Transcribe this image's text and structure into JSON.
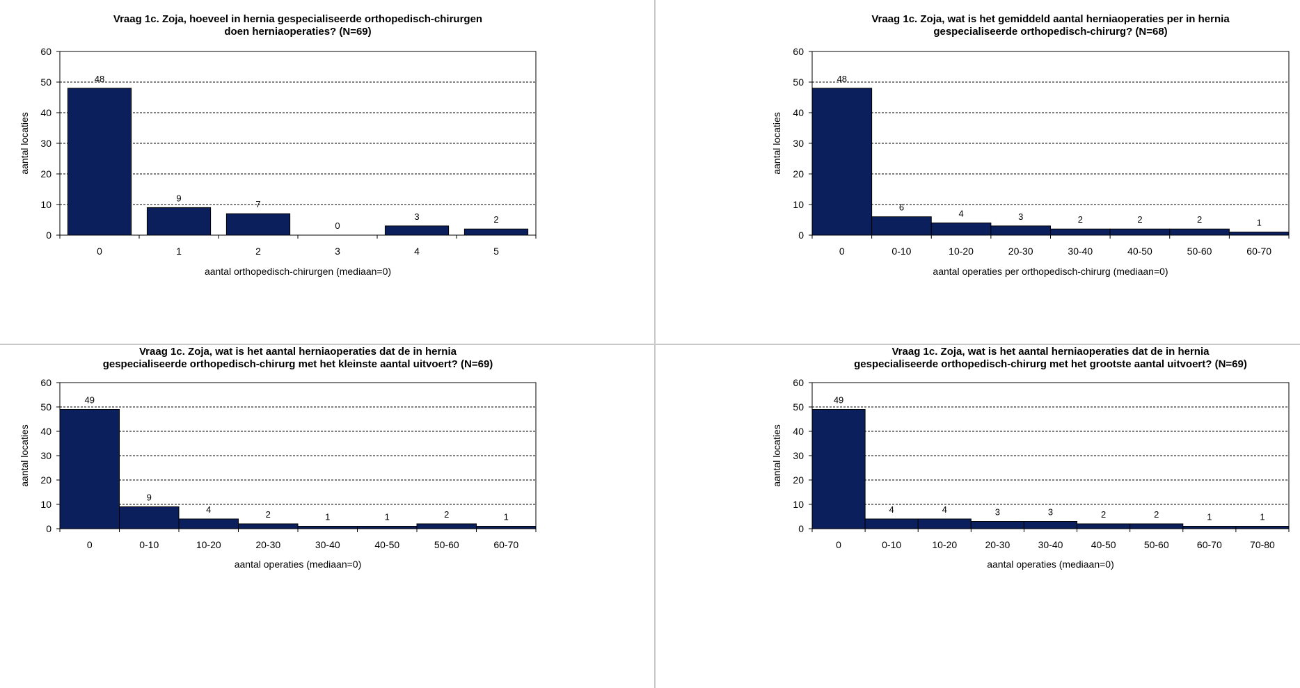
{
  "style": {
    "bar_color": "#0a1f5c",
    "bar_border": "#000000",
    "grid_color": "#000000",
    "panel_border": "#c8c8c8"
  },
  "chart_data": [
    {
      "type": "bar",
      "title": [
        "Vraag 1c. Zoja, hoeveel in hernia gespecialiseerde  orthopedisch-chirurgen",
        "doen herniaoperaties?  (N=69)"
      ],
      "xlabel": "aantal orthopedisch-chirurgen (mediaan=0)",
      "ylabel": "aantal locaties",
      "categories": [
        "0",
        "1",
        "2",
        "3",
        "4",
        "5"
      ],
      "values": [
        48,
        9,
        7,
        0,
        3,
        2
      ],
      "ylim": [
        0,
        60
      ],
      "yticks": [
        0,
        10,
        20,
        30,
        40,
        50,
        60
      ],
      "grid": true,
      "bars_touching": false
    },
    {
      "type": "bar",
      "title": [
        "Vraag 1c. Zoja, wat is het gemiddeld aantal herniaoperaties  per in hernia",
        "gespecialiseerde  orthopedisch-chirurg?  (N=68)"
      ],
      "xlabel": "aantal operaties per orthopedisch-chirurg (mediaan=0)",
      "ylabel": "aantal locaties",
      "categories": [
        "0",
        "0-10",
        "10-20",
        "20-30",
        "30-40",
        "40-50",
        "50-60",
        "60-70"
      ],
      "values": [
        48,
        6,
        4,
        3,
        2,
        2,
        2,
        1
      ],
      "ylim": [
        0,
        60
      ],
      "yticks": [
        0,
        10,
        20,
        30,
        40,
        50,
        60
      ],
      "grid": true,
      "bars_touching": true
    },
    {
      "type": "bar",
      "title": [
        "Vraag 1c. Zoja, wat is het aantal  herniaoperaties  dat de in hernia",
        "gespecialiseerde  orthopedisch-chirurg  met het kleinste aantal  uitvoert?  (N=69)"
      ],
      "xlabel": "aantal operaties (mediaan=0)",
      "ylabel": "aantal locaties",
      "categories": [
        "0",
        "0-10",
        "10-20",
        "20-30",
        "30-40",
        "40-50",
        "50-60",
        "60-70"
      ],
      "values": [
        49,
        9,
        4,
        2,
        1,
        1,
        2,
        1
      ],
      "ylim": [
        0,
        60
      ],
      "yticks": [
        0,
        10,
        20,
        30,
        40,
        50,
        60
      ],
      "grid": true,
      "bars_touching": true
    },
    {
      "type": "bar",
      "title": [
        "Vraag 1c. Zoja, wat is het aantal  herniaoperaties  dat de in hernia",
        "gespecialiseerde  orthopedisch-chirurg  met het grootste  aantal  uitvoert?  (N=69)"
      ],
      "xlabel": "aantal operaties (mediaan=0)",
      "ylabel": "aantal locaties",
      "categories": [
        "0",
        "0-10",
        "10-20",
        "20-30",
        "30-40",
        "40-50",
        "50-60",
        "60-70",
        "70-80"
      ],
      "values": [
        49,
        4,
        4,
        3,
        3,
        2,
        2,
        1,
        1
      ],
      "ylim": [
        0,
        60
      ],
      "yticks": [
        0,
        10,
        20,
        30,
        40,
        50,
        60
      ],
      "grid": true,
      "bars_touching": true
    }
  ]
}
